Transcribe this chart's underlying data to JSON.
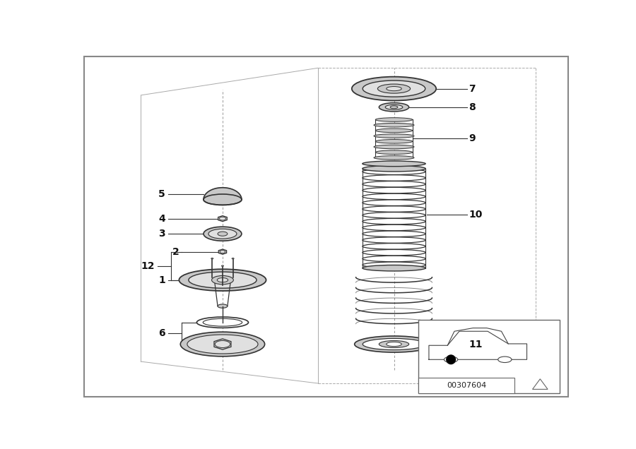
{
  "bg_color": "#ffffff",
  "border_color": "#aaaaaa",
  "diagram_code": "00307604",
  "line_color": "#222222",
  "part_label_color": "#111111",
  "lc": "#333333",
  "gray1": "#c8c8c8",
  "gray2": "#e0e0e0",
  "gray3": "#b0b0b0"
}
